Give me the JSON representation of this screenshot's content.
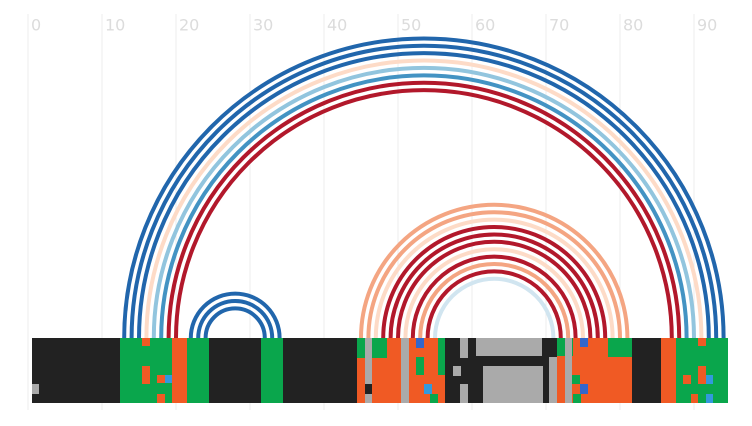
{
  "chart_data": {
    "type": "arc",
    "xlim": [
      0,
      95
    ],
    "xticks": [
      0,
      10,
      20,
      30,
      40,
      50,
      60,
      70,
      80,
      90
    ],
    "grid": true,
    "arcs": [
      {
        "start": 13,
        "end": 94,
        "color": "#2166ac"
      },
      {
        "start": 14,
        "end": 93,
        "color": "#2166ac"
      },
      {
        "start": 15,
        "end": 92,
        "color": "#2166ac"
      },
      {
        "start": 16,
        "end": 91,
        "color": "#fddbc7"
      },
      {
        "start": 17,
        "end": 90,
        "color": "#92c5de"
      },
      {
        "start": 18,
        "end": 89,
        "color": "#4393c3"
      },
      {
        "start": 19,
        "end": 88,
        "color": "#b2182b"
      },
      {
        "start": 20,
        "end": 87,
        "color": "#b2182b"
      },
      {
        "start": 22,
        "end": 34,
        "color": "#2166ac"
      },
      {
        "start": 23,
        "end": 33,
        "color": "#2166ac"
      },
      {
        "start": 24,
        "end": 32,
        "color": "#2166ac"
      },
      {
        "start": 45,
        "end": 81,
        "color": "#f4a582"
      },
      {
        "start": 46,
        "end": 80,
        "color": "#f4a582"
      },
      {
        "start": 47,
        "end": 79,
        "color": "#fddbc7"
      },
      {
        "start": 48,
        "end": 78,
        "color": "#b2182b"
      },
      {
        "start": 49,
        "end": 77,
        "color": "#b2182b"
      },
      {
        "start": 50,
        "end": 76,
        "color": "#b2182b"
      },
      {
        "start": 51,
        "end": 75,
        "color": "#fddbc7"
      },
      {
        "start": 52,
        "end": 74,
        "color": "#b2182b"
      },
      {
        "start": 53,
        "end": 73,
        "color": "#f4a582"
      },
      {
        "start": 54,
        "end": 72,
        "color": "#b2182b"
      },
      {
        "start": 55,
        "end": 71,
        "color": "#d1e5f0"
      }
    ]
  }
}
